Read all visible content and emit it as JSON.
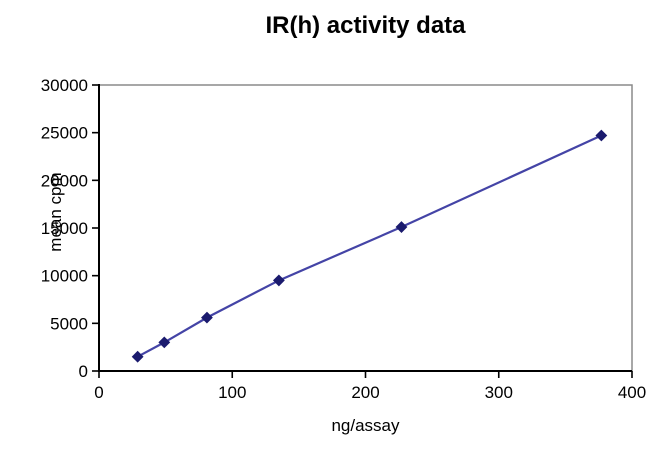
{
  "chart_data": {
    "type": "line",
    "title": "IR(h) activity data",
    "xlabel": "ng/assay",
    "ylabel": "mean cpm",
    "xlim": [
      0,
      400
    ],
    "ylim": [
      0,
      30000
    ],
    "xticks": [
      0,
      100,
      200,
      300,
      400
    ],
    "yticks": [
      0,
      5000,
      10000,
      15000,
      20000,
      25000,
      30000
    ],
    "grid": false,
    "legend": false,
    "series": [
      {
        "name": "IR(h) activity",
        "x": [
          29,
          49,
          81,
          135,
          227,
          377
        ],
        "y": [
          1500,
          3000,
          5600,
          9500,
          15100,
          24700
        ],
        "line_color": "#4444a6",
        "marker": "diamond",
        "marker_color": "#1b1b6e"
      }
    ]
  },
  "colors": {
    "axis": "#000000",
    "plot_border": "#8a8a8a",
    "background": "#ffffff",
    "text": "#000000"
  }
}
